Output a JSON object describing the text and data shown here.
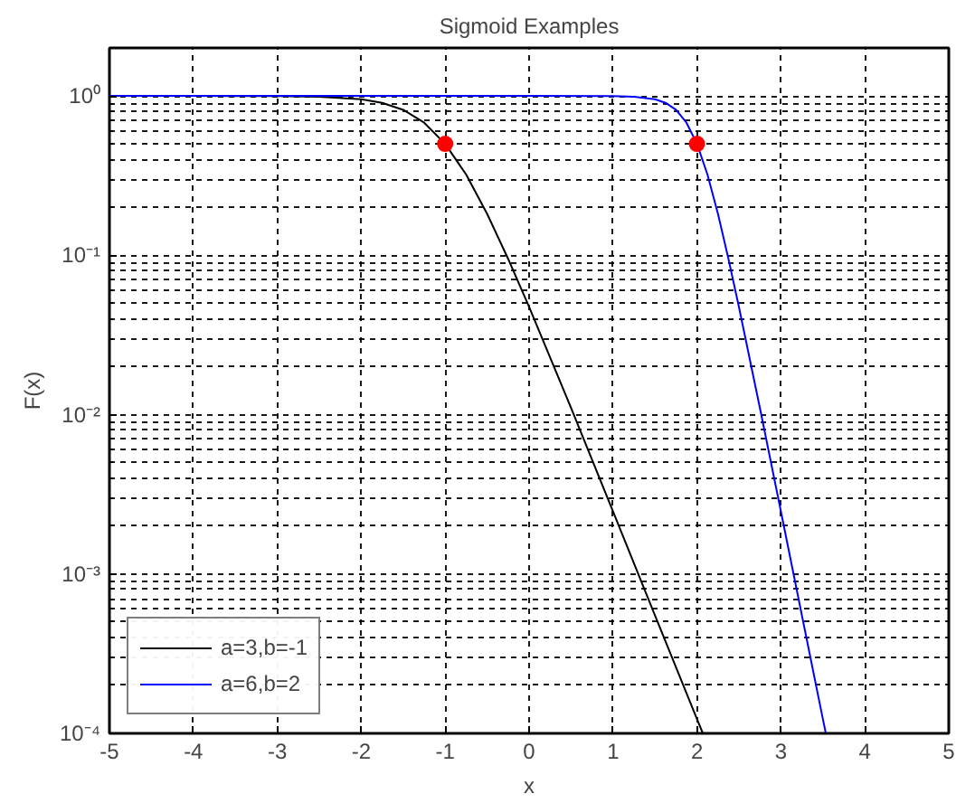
{
  "chart_data": {
    "type": "line",
    "title": "Sigmoid Examples",
    "xlabel": "x",
    "ylabel": "F(x)",
    "log": "y",
    "xlim": [
      -5,
      5
    ],
    "xticks": [
      -5,
      -4,
      -3,
      -2,
      -1,
      0,
      1,
      2,
      3,
      4,
      5
    ],
    "ylim": [
      0.0001,
      2
    ],
    "yticks": [
      {
        "value": 0.0001,
        "label": "10⁻⁴"
      },
      {
        "value": 0.001,
        "label": "10⁻³"
      },
      {
        "value": 0.01,
        "label": "10⁻²"
      },
      {
        "value": 0.1,
        "label": "10⁻¹"
      },
      {
        "value": 1,
        "label": "10⁰"
      }
    ],
    "grid": true,
    "legend": "bottom left",
    "line_style": "solid",
    "marker": "none",
    "series": [
      {
        "name": "a=3,b=-1",
        "color": "#000000",
        "x": [
          -5,
          -4,
          -3,
          -2.5,
          -2,
          -1.75,
          -1.5,
          -1.25,
          -1,
          -0.75,
          -0.5,
          -0.25,
          0,
          0.5,
          1,
          1.5,
          2,
          2.07
        ],
        "values": [
          1,
          0.9999,
          0.9975,
          0.989,
          0.953,
          0.905,
          0.818,
          0.679,
          0.5,
          0.321,
          0.182,
          0.095,
          0.0474,
          0.011,
          0.00247,
          0.00055,
          0.000123,
          0.0001
        ]
      },
      {
        "name": "a=6,b=2",
        "color": "#0000ff",
        "x": [
          -5,
          0,
          1,
          1.25,
          1.5,
          1.625,
          1.75,
          1.875,
          2,
          2.125,
          2.25,
          2.375,
          2.5,
          2.75,
          3,
          3.25,
          3.5,
          3.535
        ],
        "values": [
          1,
          1,
          0.9975,
          0.989,
          0.953,
          0.905,
          0.818,
          0.679,
          0.5,
          0.321,
          0.182,
          0.095,
          0.0474,
          0.011,
          0.00247,
          0.00055,
          0.000123,
          0.0001
        ]
      },
      {
        "type": "scatter",
        "marker": "circle",
        "color": "#ff0000",
        "x": [
          -1,
          2
        ],
        "values": [
          0.5,
          0.5
        ]
      }
    ]
  }
}
